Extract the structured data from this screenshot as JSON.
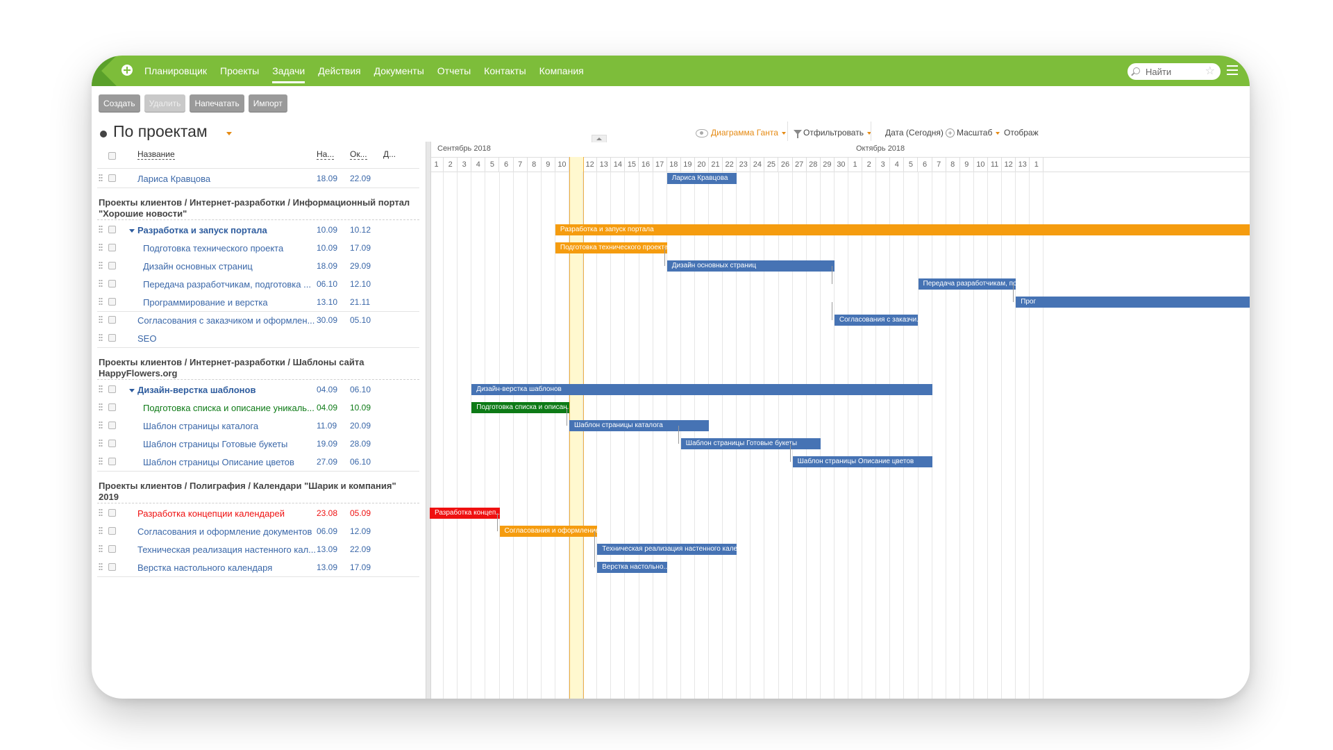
{
  "nav": {
    "items": [
      "Планировщик",
      "Проекты",
      "Задачи",
      "Действия",
      "Документы",
      "Отчеты",
      "Контакты",
      "Компания"
    ],
    "active_index": 2
  },
  "search": {
    "placeholder": "Найти"
  },
  "toolbar": {
    "create": "Создать",
    "delete": "Удалить",
    "print": "Напечатать",
    "import": "Импорт"
  },
  "page": {
    "title": "По проектам"
  },
  "view": {
    "gantt": "Диаграмма Ганта",
    "filter": "Отфильтровать",
    "date": "Дата (Сегодня)",
    "scale": "Масштаб",
    "display": "Отображ"
  },
  "columns": {
    "name": "Название",
    "start": "На...",
    "end": "Ок...",
    "duration": "Д..."
  },
  "colors": {
    "accent": "#7dbd3a",
    "link": "#3a67a8",
    "orange": "#f59c0f",
    "green": "#0d7a16",
    "red": "#ef1010",
    "blue": "#4673b4"
  },
  "rows": [
    {
      "type": "task",
      "name": "Лариса Кравцова",
      "start": "18.09",
      "end": "22.09",
      "indent": 0,
      "color": "#3a67a8",
      "bar": "blue",
      "bar_label": "Лариса Кравцова",
      "bar_start": 17,
      "bar_end": 22
    },
    {
      "type": "group",
      "name": "Проекты клиентов / Интернет-разработки / Информационный портал \"Хорошие новости\""
    },
    {
      "type": "parent",
      "name": "Разработка и запуск портала",
      "start": "10.09",
      "end": "10.12",
      "indent": 0,
      "color": "#2e5c9e",
      "bar": "orange",
      "bar_label": "Разработка и запуск портала",
      "bar_start": 9,
      "bar_end": 60
    },
    {
      "type": "task",
      "name": "Подготовка технического проекта",
      "start": "10.09",
      "end": "17.09",
      "indent": 1,
      "color": "#3a67a8",
      "bar": "orange",
      "bar_label": "Подготовка технического проекта",
      "bar_start": 9,
      "bar_end": 17
    },
    {
      "type": "task",
      "name": "Дизайн основных страниц",
      "start": "18.09",
      "end": "29.09",
      "indent": 1,
      "color": "#3a67a8",
      "bar": "blue",
      "bar_label": "Дизайн основных страниц",
      "bar_start": 17,
      "bar_end": 29
    },
    {
      "type": "task",
      "name": "Передача разработчикам, подготовка ...",
      "start": "06.10",
      "end": "12.10",
      "indent": 1,
      "color": "#3a67a8",
      "bar": "blue",
      "bar_label": "Передача разработчикам, по...",
      "bar_start": 35,
      "bar_end": 42
    },
    {
      "type": "task",
      "name": "Программирование и верстка",
      "start": "13.10",
      "end": "21.11",
      "indent": 1,
      "color": "#3a67a8",
      "bar": "blue",
      "bar_label": "Прог",
      "bar_start": 42,
      "bar_end": 60
    },
    {
      "type": "task",
      "name": "Согласования с заказчиком и оформлен...",
      "start": "30.09",
      "end": "05.10",
      "indent": 0,
      "color": "#3a67a8",
      "bar": "blue",
      "bar_label": "Согласования с заказчи...",
      "bar_start": 29,
      "bar_end": 35
    },
    {
      "type": "task",
      "name": "SEO",
      "start": "",
      "end": "",
      "indent": 0,
      "color": "#3a67a8"
    },
    {
      "type": "group",
      "name": "Проекты клиентов / Интернет-разработки / Шаблоны сайта HappyFlowers.org"
    },
    {
      "type": "parent",
      "name": "Дизайн-верстка шаблонов",
      "start": "04.09",
      "end": "06.10",
      "indent": 0,
      "color": "#2e5c9e",
      "bar": "blue",
      "bar_label": "Дизайн-верстка шаблонов",
      "bar_start": 3,
      "bar_end": 36
    },
    {
      "type": "task",
      "name": "Подготовка списка и описание уникаль...",
      "start": "04.09",
      "end": "10.09",
      "indent": 1,
      "color": "#0d7a16",
      "bar": "green",
      "bar_label": "Подготовка списка и описан...",
      "bar_start": 3,
      "bar_end": 10
    },
    {
      "type": "task",
      "name": "Шаблон страницы каталога",
      "start": "11.09",
      "end": "20.09",
      "indent": 1,
      "color": "#3a67a8",
      "bar": "blue",
      "bar_label": "Шаблон страницы каталога",
      "bar_start": 10,
      "bar_end": 20
    },
    {
      "type": "task",
      "name": "Шаблон страницы Готовые букеты",
      "start": "19.09",
      "end": "28.09",
      "indent": 1,
      "color": "#3a67a8",
      "bar": "blue",
      "bar_label": "Шаблон страницы Готовые букеты",
      "bar_start": 18,
      "bar_end": 28
    },
    {
      "type": "task",
      "name": "Шаблон страницы Описание цветов",
      "start": "27.09",
      "end": "06.10",
      "indent": 1,
      "color": "#3a67a8",
      "bar": "blue",
      "bar_label": "Шаблон страницы Описание цветов",
      "bar_start": 26,
      "bar_end": 36
    },
    {
      "type": "group",
      "name": "Проекты клиентов / Полиграфия / Календари \"Шарик и компания\" 2019"
    },
    {
      "type": "task",
      "name": "Разработка концепции календарей",
      "start": "23.08",
      "end": "05.09",
      "indent": 0,
      "color": "#ef1010",
      "bar": "red",
      "bar_label": "Разработка концеп...",
      "bar_start": 0,
      "bar_end": 5
    },
    {
      "type": "task",
      "name": "Согласования и оформление документов",
      "start": "06.09",
      "end": "12.09",
      "indent": 0,
      "color": "#3a67a8",
      "bar": "orange",
      "bar_label": "Согласования и оформление ...",
      "bar_start": 5,
      "bar_end": 12
    },
    {
      "type": "task",
      "name": "Техническая реализация настенного кал...",
      "start": "13.09",
      "end": "22.09",
      "indent": 0,
      "color": "#3a67a8",
      "bar": "blue",
      "bar_label": "Техническая реализация настенного кален...",
      "bar_start": 12,
      "bar_end": 22
    },
    {
      "type": "task",
      "name": "Верстка настольного календаря",
      "start": "13.09",
      "end": "17.09",
      "indent": 0,
      "color": "#3a67a8",
      "bar": "blue",
      "bar_label": "Верстка настольно...",
      "bar_start": 12,
      "bar_end": 17
    }
  ],
  "timeline": {
    "months": [
      {
        "label": "Сентябрь 2018",
        "start_index": 0
      },
      {
        "label": "Октябрь 2018",
        "start_index": 30
      }
    ],
    "days": [
      "1",
      "2",
      "3",
      "4",
      "5",
      "6",
      "7",
      "8",
      "9",
      "10",
      "11",
      "12",
      "13",
      "14",
      "15",
      "16",
      "17",
      "18",
      "19",
      "20",
      "21",
      "22",
      "23",
      "24",
      "25",
      "26",
      "27",
      "28",
      "29",
      "30",
      "1",
      "2",
      "3",
      "4",
      "5",
      "6",
      "7",
      "8",
      "9",
      "10",
      "11",
      "12",
      "13",
      "1"
    ],
    "today_index": 10
  }
}
